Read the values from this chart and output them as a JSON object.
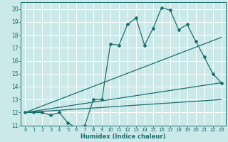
{
  "title": "",
  "xlabel": "Humidex (Indice chaleur)",
  "ylabel": "",
  "bg_color": "#cbe9e9",
  "grid_color": "#ffffff",
  "line_color": "#1a6e6e",
  "xlim": [
    -0.5,
    23.5
  ],
  "ylim": [
    11,
    20.5
  ],
  "xticks": [
    0,
    1,
    2,
    3,
    4,
    5,
    6,
    7,
    8,
    9,
    10,
    11,
    12,
    13,
    14,
    15,
    16,
    17,
    18,
    19,
    20,
    21,
    22,
    23
  ],
  "yticks": [
    11,
    12,
    13,
    14,
    15,
    16,
    17,
    18,
    19,
    20
  ],
  "curve1_x": [
    0,
    1,
    2,
    3,
    4,
    5,
    6,
    7,
    8,
    9,
    10,
    11,
    12,
    13,
    14,
    15,
    16,
    17,
    18,
    19,
    20,
    21,
    22,
    23
  ],
  "curve1_y": [
    12.0,
    12.0,
    12.0,
    11.8,
    12.0,
    11.2,
    10.8,
    11.0,
    13.0,
    13.0,
    17.3,
    17.2,
    18.8,
    19.3,
    17.2,
    18.5,
    20.1,
    19.9,
    18.4,
    18.8,
    17.5,
    16.3,
    15.0,
    14.3
  ],
  "line1_x": [
    0,
    23
  ],
  "line1_y": [
    12.0,
    13.0
  ],
  "line2_x": [
    0,
    23
  ],
  "line2_y": [
    12.0,
    17.8
  ],
  "line3_x": [
    0,
    23
  ],
  "line3_y": [
    12.0,
    14.3
  ]
}
